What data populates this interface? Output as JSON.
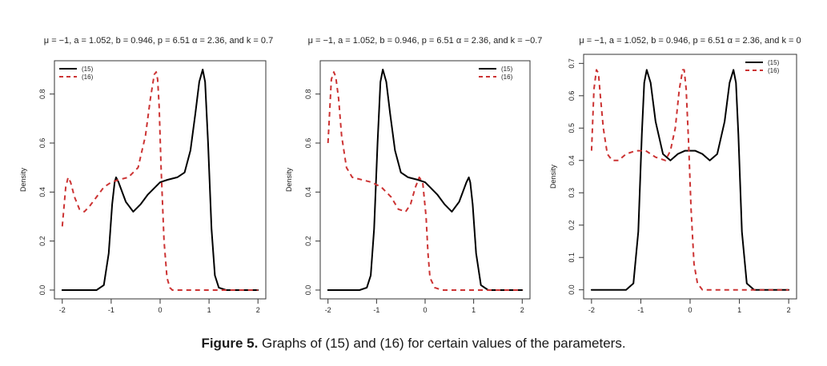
{
  "caption": {
    "label": "Figure 5.",
    "text": " Graphs of (15) and (16) for certain values of the parameters."
  },
  "chart_data": [
    {
      "type": "line",
      "title": "μ = −1, a = 1.052, b = 0.946, p = 6.51 α = 2.36, and k = 0.7",
      "xlabel": "",
      "ylabel": "Density",
      "xlim": [
        -2,
        2
      ],
      "ylim": [
        0,
        0.9
      ],
      "xticks": [
        "-2",
        "-1",
        "0",
        "1",
        "2"
      ],
      "yticks": [
        "0.0",
        "0.2",
        "0.4",
        "0.6",
        "0.8"
      ],
      "legend_position": "top-left",
      "series": [
        {
          "name": "(15)",
          "color": "#000000",
          "dash": "solid",
          "x": [
            -2.0,
            -1.3,
            -1.15,
            -1.05,
            -0.98,
            -0.93,
            -0.9,
            -0.85,
            -0.7,
            -0.55,
            -0.4,
            -0.25,
            -0.1,
            0.0,
            0.15,
            0.35,
            0.5,
            0.62,
            0.72,
            0.8,
            0.87,
            0.92,
            0.98,
            1.05,
            1.12,
            1.2,
            1.35,
            2.0
          ],
          "y": [
            0.0,
            0.0,
            0.02,
            0.15,
            0.35,
            0.44,
            0.46,
            0.44,
            0.36,
            0.32,
            0.35,
            0.39,
            0.42,
            0.44,
            0.45,
            0.46,
            0.48,
            0.57,
            0.72,
            0.85,
            0.9,
            0.85,
            0.6,
            0.25,
            0.06,
            0.01,
            0.0,
            0.0
          ]
        },
        {
          "name": "(16)",
          "color": "#cc3333",
          "dash": "dashed",
          "x": [
            -2.0,
            -1.93,
            -1.88,
            -1.83,
            -1.75,
            -1.65,
            -1.55,
            -1.45,
            -1.3,
            -1.15,
            -1.0,
            -0.85,
            -0.65,
            -0.45,
            -0.3,
            -0.2,
            -0.12,
            -0.08,
            -0.05,
            -0.02,
            0.02,
            0.08,
            0.14,
            0.2,
            0.25,
            0.35,
            2.0
          ],
          "y": [
            0.26,
            0.42,
            0.46,
            0.44,
            0.38,
            0.33,
            0.32,
            0.34,
            0.38,
            0.42,
            0.44,
            0.45,
            0.46,
            0.5,
            0.63,
            0.78,
            0.88,
            0.89,
            0.86,
            0.75,
            0.5,
            0.2,
            0.05,
            0.01,
            0.0,
            0.0,
            0.0
          ]
        }
      ]
    },
    {
      "type": "line",
      "title": "μ = −1, a = 1.052, b = 0.946, p = 6.51 α = 2.36, and k = −0.7",
      "xlabel": "",
      "ylabel": "Density",
      "xlim": [
        -2,
        2
      ],
      "ylim": [
        0,
        0.9
      ],
      "xticks": [
        "-2",
        "-1",
        "0",
        "1",
        "2"
      ],
      "yticks": [
        "0.0",
        "0.2",
        "0.4",
        "0.6",
        "0.8"
      ],
      "legend_position": "top-right",
      "series": [
        {
          "name": "(15)",
          "color": "#000000",
          "dash": "solid",
          "x": [
            -2.0,
            -1.35,
            -1.2,
            -1.12,
            -1.05,
            -0.98,
            -0.92,
            -0.87,
            -0.8,
            -0.72,
            -0.62,
            -0.5,
            -0.35,
            -0.15,
            0.0,
            0.1,
            0.25,
            0.4,
            0.55,
            0.7,
            0.85,
            0.9,
            0.93,
            0.98,
            1.05,
            1.15,
            1.3,
            2.0
          ],
          "y": [
            0.0,
            0.0,
            0.01,
            0.06,
            0.25,
            0.6,
            0.85,
            0.9,
            0.85,
            0.72,
            0.57,
            0.48,
            0.46,
            0.45,
            0.44,
            0.42,
            0.39,
            0.35,
            0.32,
            0.36,
            0.44,
            0.46,
            0.44,
            0.35,
            0.15,
            0.02,
            0.0,
            0.0
          ]
        },
        {
          "name": "(16)",
          "color": "#cc3333",
          "dash": "dashed",
          "x": [
            -2.0,
            -1.93,
            -1.88,
            -1.84,
            -1.78,
            -1.72,
            -1.62,
            -1.5,
            -1.3,
            -1.1,
            -0.9,
            -0.7,
            -0.55,
            -0.4,
            -0.3,
            -0.2,
            -0.12,
            -0.05,
            0.02,
            0.06,
            0.1,
            0.2,
            0.35,
            2.0
          ],
          "y": [
            0.6,
            0.86,
            0.89,
            0.87,
            0.78,
            0.63,
            0.5,
            0.46,
            0.45,
            0.44,
            0.42,
            0.38,
            0.33,
            0.32,
            0.35,
            0.42,
            0.46,
            0.44,
            0.3,
            0.15,
            0.05,
            0.01,
            0.0,
            0.0
          ]
        }
      ]
    },
    {
      "type": "line",
      "title": "μ = −1, a = 1.052, b = 0.946, p = 6.51 α = 2.36, and k = 0",
      "xlabel": "",
      "ylabel": "Density",
      "xlim": [
        -2,
        2
      ],
      "ylim": [
        0,
        0.7
      ],
      "xticks": [
        "-2",
        "-1",
        "0",
        "1",
        "2"
      ],
      "yticks": [
        "0.0",
        "0.1",
        "0.2",
        "0.3",
        "0.4",
        "0.5",
        "0.6",
        "0.7"
      ],
      "legend_position": "top-right",
      "series": [
        {
          "name": "(15)",
          "color": "#000000",
          "dash": "solid",
          "x": [
            -2.0,
            -1.3,
            -1.15,
            -1.05,
            -0.98,
            -0.93,
            -0.88,
            -0.8,
            -0.7,
            -0.55,
            -0.4,
            -0.25,
            -0.1,
            0.0,
            0.1,
            0.25,
            0.4,
            0.55,
            0.7,
            0.8,
            0.88,
            0.93,
            0.98,
            1.05,
            1.15,
            1.3,
            2.0
          ],
          "y": [
            0.0,
            0.0,
            0.02,
            0.18,
            0.48,
            0.64,
            0.68,
            0.64,
            0.52,
            0.42,
            0.4,
            0.42,
            0.43,
            0.43,
            0.43,
            0.42,
            0.4,
            0.42,
            0.52,
            0.64,
            0.68,
            0.64,
            0.48,
            0.18,
            0.02,
            0.0,
            0.0
          ]
        },
        {
          "name": "(16)",
          "color": "#cc3333",
          "dash": "dashed",
          "x": [
            -2.0,
            -1.95,
            -1.9,
            -1.86,
            -1.82,
            -1.76,
            -1.68,
            -1.58,
            -1.45,
            -1.3,
            -1.1,
            -0.9,
            -0.7,
            -0.5,
            -0.4,
            -0.3,
            -0.22,
            -0.15,
            -0.12,
            -0.08,
            -0.03,
            0.02,
            0.08,
            0.15,
            0.25,
            0.35,
            2.0
          ],
          "y": [
            0.43,
            0.62,
            0.68,
            0.67,
            0.6,
            0.5,
            0.42,
            0.4,
            0.4,
            0.42,
            0.43,
            0.43,
            0.41,
            0.4,
            0.43,
            0.5,
            0.62,
            0.68,
            0.68,
            0.62,
            0.45,
            0.25,
            0.08,
            0.02,
            0.0,
            0.0,
            0.0
          ]
        }
      ]
    }
  ]
}
